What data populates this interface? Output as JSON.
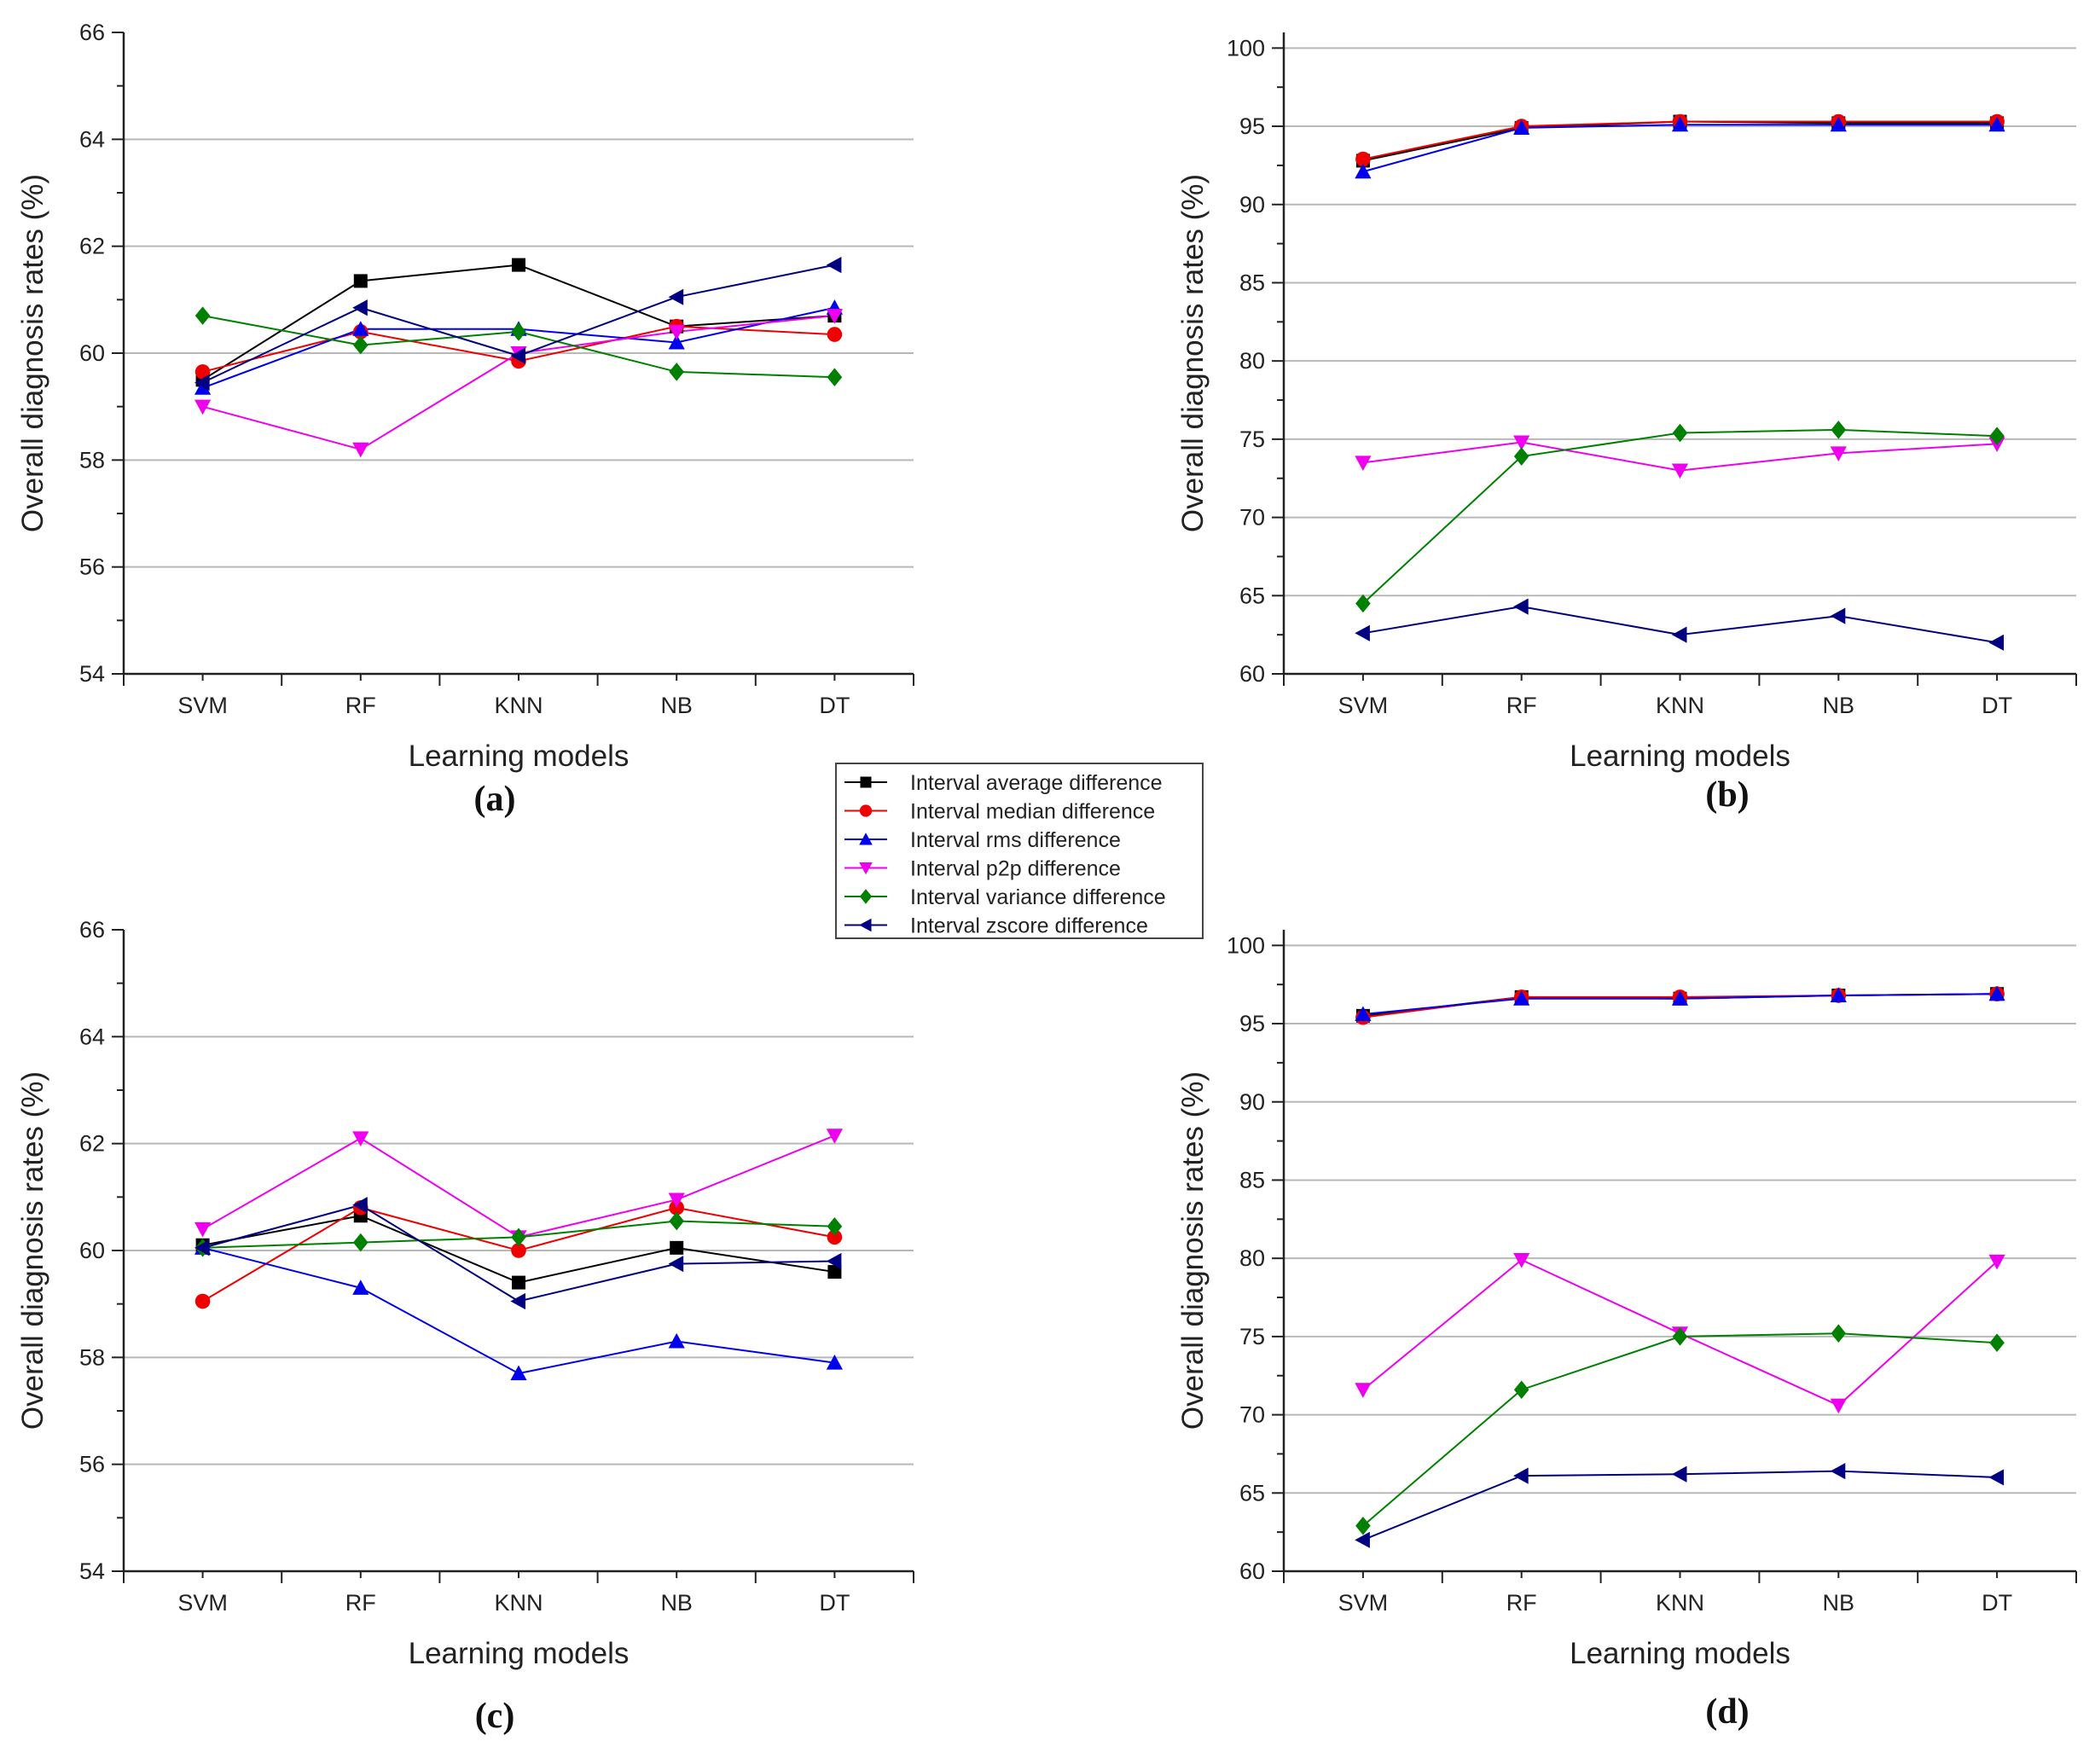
{
  "legend": [
    {
      "key": "avg",
      "label": "Interval average difference",
      "color": "#000000",
      "marker": "square"
    },
    {
      "key": "median",
      "label": "Interval median difference",
      "color": "#ee0000",
      "marker": "circle"
    },
    {
      "key": "rms",
      "label": "Interval rms difference",
      "color": "#0000ee",
      "marker": "triangle-up"
    },
    {
      "key": "p2p",
      "label": "Interval p2p difference",
      "color": "#ee00ee",
      "marker": "triangle-down"
    },
    {
      "key": "variance",
      "label": "Interval variance difference",
      "color": "#008000",
      "marker": "diamond"
    },
    {
      "key": "zscore",
      "label": "Interval zscore difference",
      "color": "#000080",
      "marker": "triangle-left"
    }
  ],
  "chart_data": [
    {
      "type": "line",
      "panel_label": "(a)",
      "xlabel": "Learning models",
      "ylabel": "Overall diagnosis rates (%)",
      "categories": [
        "SVM",
        "RF",
        "KNN",
        "NB",
        "DT"
      ],
      "ylim": [
        54,
        66
      ],
      "yticks": [
        54,
        56,
        58,
        60,
        62,
        64,
        66
      ],
      "series": [
        {
          "key": "avg",
          "name": "Interval average difference",
          "values": [
            59.5,
            61.35,
            61.65,
            60.5,
            60.7
          ]
        },
        {
          "key": "median",
          "name": "Interval median difference",
          "values": [
            59.65,
            60.4,
            59.85,
            60.5,
            60.35
          ]
        },
        {
          "key": "rms",
          "name": "Interval rms difference",
          "values": [
            59.35,
            60.45,
            60.45,
            60.2,
            60.85
          ]
        },
        {
          "key": "p2p",
          "name": "Interval p2p difference",
          "values": [
            59.0,
            58.2,
            60.0,
            60.4,
            60.7
          ]
        },
        {
          "key": "variance",
          "name": "Interval variance difference",
          "values": [
            60.7,
            60.15,
            60.4,
            59.65,
            59.55
          ]
        },
        {
          "key": "zscore",
          "name": "Interval zscore difference",
          "values": [
            59.45,
            60.85,
            59.95,
            61.05,
            61.65
          ]
        }
      ]
    },
    {
      "type": "line",
      "panel_label": "(b)",
      "xlabel": "Learning models",
      "ylabel": "Overall diagnosis rates (%)",
      "categories": [
        "SVM",
        "RF",
        "KNN",
        "NB",
        "DT"
      ],
      "ylim": [
        60,
        101
      ],
      "yticks": [
        60,
        65,
        70,
        75,
        80,
        85,
        90,
        95,
        100
      ],
      "series": [
        {
          "key": "avg",
          "name": "Interval average difference",
          "values": [
            92.8,
            94.9,
            95.3,
            95.2,
            95.2
          ]
        },
        {
          "key": "median",
          "name": "Interval median difference",
          "values": [
            92.9,
            95.0,
            95.3,
            95.3,
            95.3
          ]
        },
        {
          "key": "rms",
          "name": "Interval rms difference",
          "values": [
            92.1,
            94.9,
            95.1,
            95.1,
            95.1
          ]
        },
        {
          "key": "p2p",
          "name": "Interval p2p difference",
          "values": [
            73.5,
            74.8,
            73.0,
            74.1,
            74.7
          ]
        },
        {
          "key": "variance",
          "name": "Interval variance difference",
          "values": [
            64.5,
            73.9,
            75.4,
            75.6,
            75.2
          ]
        },
        {
          "key": "zscore",
          "name": "Interval zscore difference",
          "values": [
            62.6,
            64.3,
            62.5,
            63.7,
            62.0
          ]
        }
      ]
    },
    {
      "type": "line",
      "panel_label": "(c)",
      "xlabel": "Learning models",
      "ylabel": "Overall diagnosis rates (%)",
      "categories": [
        "SVM",
        "RF",
        "KNN",
        "NB",
        "DT"
      ],
      "ylim": [
        54,
        66
      ],
      "yticks": [
        54,
        56,
        58,
        60,
        62,
        64,
        66
      ],
      "series": [
        {
          "key": "avg",
          "name": "Interval average difference",
          "values": [
            60.1,
            60.65,
            59.4,
            60.05,
            59.6
          ]
        },
        {
          "key": "median",
          "name": "Interval median difference",
          "values": [
            59.05,
            60.8,
            60.0,
            60.8,
            60.25
          ]
        },
        {
          "key": "rms",
          "name": "Interval rms difference",
          "values": [
            60.05,
            59.3,
            57.7,
            58.3,
            57.9
          ]
        },
        {
          "key": "p2p",
          "name": "Interval p2p difference",
          "values": [
            60.4,
            62.1,
            60.25,
            60.95,
            62.15
          ]
        },
        {
          "key": "variance",
          "name": "Interval variance difference",
          "values": [
            60.05,
            60.15,
            60.25,
            60.55,
            60.45
          ]
        },
        {
          "key": "zscore",
          "name": "Interval zscore difference",
          "values": [
            60.05,
            60.85,
            59.05,
            59.75,
            59.8
          ]
        }
      ]
    },
    {
      "type": "line",
      "panel_label": "(d)",
      "xlabel": "Learning models",
      "ylabel": "Overall diagnosis rates (%)",
      "categories": [
        "SVM",
        "RF",
        "KNN",
        "NB",
        "DT"
      ],
      "ylim": [
        60,
        101
      ],
      "yticks": [
        60,
        65,
        70,
        75,
        80,
        85,
        90,
        95,
        100
      ],
      "series": [
        {
          "key": "avg",
          "name": "Interval average difference",
          "values": [
            95.5,
            96.7,
            96.6,
            96.8,
            96.9
          ]
        },
        {
          "key": "median",
          "name": "Interval median difference",
          "values": [
            95.4,
            96.7,
            96.7,
            96.8,
            96.9
          ]
        },
        {
          "key": "rms",
          "name": "Interval rms difference",
          "values": [
            95.6,
            96.6,
            96.6,
            96.8,
            96.9
          ]
        },
        {
          "key": "p2p",
          "name": "Interval p2p difference",
          "values": [
            71.6,
            79.9,
            75.2,
            70.6,
            79.8
          ]
        },
        {
          "key": "variance",
          "name": "Interval variance difference",
          "values": [
            62.9,
            71.6,
            75.0,
            75.2,
            74.6
          ]
        },
        {
          "key": "zscore",
          "name": "Interval zscore difference",
          "values": [
            62.0,
            66.1,
            66.2,
            66.4,
            66.0
          ]
        }
      ]
    }
  ]
}
